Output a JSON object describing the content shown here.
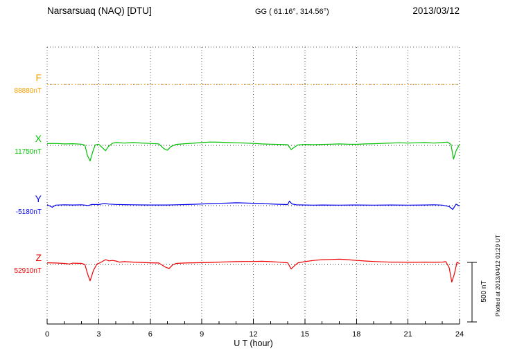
{
  "header": {
    "station": "Narsarsuaq (NAQ)  [DTU]",
    "coords": "GG ( 61.16°, 314.56°)",
    "date": "2013/03/12"
  },
  "footer_note": "Plotted at 2013/04/12 01:29 UT",
  "chart_data": {
    "type": "line",
    "title": "Narsarsuaq (NAQ) [DTU] magnetogram 2013/03/12",
    "xlabel": "U T (hour)",
    "x_range": [
      0,
      24
    ],
    "x_ticks": [
      0,
      3,
      6,
      9,
      12,
      15,
      18,
      21,
      24
    ],
    "grid": "vertical-dotted",
    "scale_bar_nT": 500,
    "scale_bar_label": "500 nT",
    "series": [
      {
        "name": "F",
        "baseline_nT": 88880,
        "baseline_label": "88880nT",
        "color": "#F0A000",
        "dotted": true,
        "points": [
          [
            0,
            0
          ],
          [
            2,
            1
          ],
          [
            4,
            0
          ],
          [
            6,
            1
          ],
          [
            8,
            0
          ],
          [
            10,
            1
          ],
          [
            12,
            0
          ],
          [
            14,
            1
          ],
          [
            16,
            0
          ],
          [
            18,
            1
          ],
          [
            20,
            0
          ],
          [
            22,
            1
          ],
          [
            24,
            0
          ]
        ]
      },
      {
        "name": "X",
        "baseline_nT": 11750,
        "baseline_label": "11750nT",
        "color": "#00C000",
        "dotted": false,
        "points": [
          [
            0,
            15
          ],
          [
            0.5,
            16
          ],
          [
            1,
            12
          ],
          [
            1.5,
            14
          ],
          [
            2,
            10
          ],
          [
            2.2,
            2
          ],
          [
            2.35,
            -88
          ],
          [
            2.5,
            -130
          ],
          [
            2.65,
            -55
          ],
          [
            2.8,
            4
          ],
          [
            3,
            10
          ],
          [
            3.2,
            -18
          ],
          [
            3.4,
            -45
          ],
          [
            3.55,
            -12
          ],
          [
            3.8,
            18
          ],
          [
            4,
            24
          ],
          [
            4.5,
            20
          ],
          [
            5,
            24
          ],
          [
            5.5,
            20
          ],
          [
            6,
            16
          ],
          [
            6.5,
            12
          ],
          [
            6.8,
            -28
          ],
          [
            7,
            -40
          ],
          [
            7.2,
            -10
          ],
          [
            7.5,
            8
          ],
          [
            8,
            14
          ],
          [
            8.5,
            18
          ],
          [
            9,
            24
          ],
          [
            9.5,
            28
          ],
          [
            10,
            27
          ],
          [
            10.5,
            24
          ],
          [
            11,
            22
          ],
          [
            11.5,
            20
          ],
          [
            12,
            16
          ],
          [
            12.5,
            12
          ],
          [
            13,
            10
          ],
          [
            13.5,
            8
          ],
          [
            14,
            6
          ],
          [
            14.2,
            -35
          ],
          [
            14.4,
            -14
          ],
          [
            14.6,
            4
          ],
          [
            15,
            8
          ],
          [
            15.5,
            6
          ],
          [
            16,
            8
          ],
          [
            16.5,
            10
          ],
          [
            17,
            12
          ],
          [
            17.5,
            10
          ],
          [
            18,
            9
          ],
          [
            18.5,
            12
          ],
          [
            19,
            14
          ],
          [
            19.5,
            17
          ],
          [
            20,
            20
          ],
          [
            20.5,
            22
          ],
          [
            21,
            20
          ],
          [
            21.5,
            22
          ],
          [
            22,
            24
          ],
          [
            22.5,
            20
          ],
          [
            23,
            24
          ],
          [
            23.3,
            28
          ],
          [
            23.5,
            8
          ],
          [
            23.65,
            -115
          ],
          [
            23.8,
            -45
          ],
          [
            24,
            8
          ]
        ]
      },
      {
        "name": "Y",
        "baseline_nT": -5180,
        "baseline_label": "-5180nT",
        "color": "#0000EE",
        "dotted": false,
        "points": [
          [
            0,
            8
          ],
          [
            0.3,
            -14
          ],
          [
            0.5,
            4
          ],
          [
            1,
            7
          ],
          [
            1.5,
            5
          ],
          [
            2,
            7
          ],
          [
            2.4,
            1
          ],
          [
            2.6,
            10
          ],
          [
            3,
            9
          ],
          [
            3.3,
            18
          ],
          [
            3.6,
            13
          ],
          [
            4,
            10
          ],
          [
            4.5,
            8
          ],
          [
            5,
            7
          ],
          [
            5.5,
            6
          ],
          [
            6,
            5
          ],
          [
            6.5,
            5
          ],
          [
            7,
            5
          ],
          [
            7.5,
            7
          ],
          [
            8,
            9
          ],
          [
            8.5,
            11
          ],
          [
            9,
            14
          ],
          [
            9.5,
            17
          ],
          [
            10,
            19
          ],
          [
            10.5,
            21
          ],
          [
            11,
            24
          ],
          [
            11.5,
            22
          ],
          [
            12,
            20
          ],
          [
            12.5,
            18
          ],
          [
            13,
            14
          ],
          [
            13.5,
            11
          ],
          [
            14,
            9
          ],
          [
            14.1,
            38
          ],
          [
            14.25,
            14
          ],
          [
            14.5,
            7
          ],
          [
            15,
            5
          ],
          [
            15.5,
            4
          ],
          [
            16,
            5
          ],
          [
            17,
            4
          ],
          [
            18,
            5
          ],
          [
            19,
            4
          ],
          [
            20,
            5
          ],
          [
            21,
            4
          ],
          [
            22,
            5
          ],
          [
            22.5,
            7
          ],
          [
            23,
            4
          ],
          [
            23.4,
            -8
          ],
          [
            23.6,
            -32
          ],
          [
            23.8,
            12
          ],
          [
            24,
            -4
          ]
        ]
      },
      {
        "name": "Z",
        "baseline_nT": 52910,
        "baseline_label": "52910nT",
        "color": "#EE0000",
        "dotted": false,
        "points": [
          [
            0,
            14
          ],
          [
            0.5,
            12
          ],
          [
            1,
            9
          ],
          [
            1.3,
            4
          ],
          [
            1.5,
            11
          ],
          [
            2,
            9
          ],
          [
            2.2,
            0
          ],
          [
            2.35,
            -78
          ],
          [
            2.5,
            -138
          ],
          [
            2.7,
            -48
          ],
          [
            2.9,
            4
          ],
          [
            3,
            9
          ],
          [
            3.2,
            24
          ],
          [
            3.4,
            40
          ],
          [
            3.6,
            30
          ],
          [
            3.8,
            34
          ],
          [
            4,
            29
          ],
          [
            4.2,
            20
          ],
          [
            4.5,
            24
          ],
          [
            5,
            20
          ],
          [
            5.5,
            17
          ],
          [
            6,
            14
          ],
          [
            6.5,
            12
          ],
          [
            6.9,
            -24
          ],
          [
            7.1,
            -34
          ],
          [
            7.3,
            -4
          ],
          [
            7.5,
            9
          ],
          [
            8,
            12
          ],
          [
            8.5,
            14
          ],
          [
            9,
            15
          ],
          [
            9.5,
            17
          ],
          [
            10,
            20
          ],
          [
            10.5,
            22
          ],
          [
            11,
            24
          ],
          [
            11.5,
            25
          ],
          [
            12,
            25
          ],
          [
            12.5,
            27
          ],
          [
            13,
            24
          ],
          [
            13.5,
            19
          ],
          [
            14,
            14
          ],
          [
            14.2,
            -38
          ],
          [
            14.4,
            -10
          ],
          [
            14.6,
            14
          ],
          [
            15,
            24
          ],
          [
            15.5,
            34
          ],
          [
            16,
            40
          ],
          [
            16.5,
            42
          ],
          [
            17,
            44
          ],
          [
            17.5,
            40
          ],
          [
            18,
            34
          ],
          [
            18.5,
            29
          ],
          [
            19,
            25
          ],
          [
            19.5,
            22
          ],
          [
            20,
            20
          ],
          [
            20.5,
            20
          ],
          [
            21,
            18
          ],
          [
            21.5,
            18
          ],
          [
            22,
            20
          ],
          [
            22.5,
            18
          ],
          [
            23,
            20
          ],
          [
            23.2,
            24
          ],
          [
            23.4,
            -28
          ],
          [
            23.55,
            -148
          ],
          [
            23.7,
            -78
          ],
          [
            23.85,
            18
          ],
          [
            24,
            9
          ]
        ]
      }
    ]
  }
}
